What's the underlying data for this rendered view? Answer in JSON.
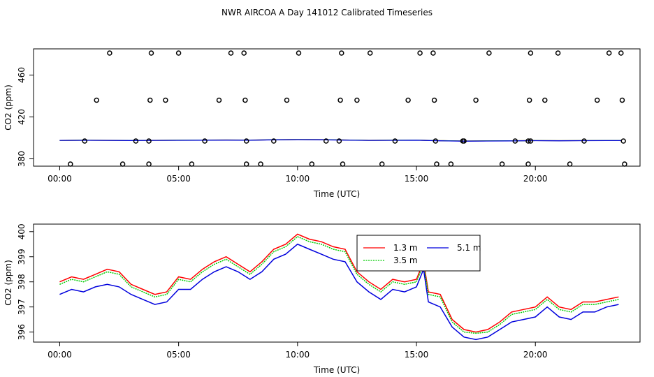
{
  "chart_data": [
    {
      "type": "scatter",
      "title": "NWR AIRCOA A  Day 141012  Calibrated Timeseries",
      "xlabel": "Time (UTC)",
      "ylabel": "CO2 (ppm)",
      "xlim": [
        -1.1,
        24.4
      ],
      "ylim": [
        373,
        485
      ],
      "xticks": [
        0,
        5,
        10,
        15,
        20
      ],
      "xtick_labels": [
        "00:00",
        "05:00",
        "10:00",
        "15:00",
        "20:00"
      ],
      "yticks": [
        380,
        420,
        460
      ],
      "ytick_labels": [
        "380",
        "420",
        "460"
      ],
      "points": [
        {
          "x": 0.45,
          "y": 375
        },
        {
          "x": 1.05,
          "y": 397
        },
        {
          "x": 1.55,
          "y": 436
        },
        {
          "x": 2.1,
          "y": 481
        },
        {
          "x": 2.65,
          "y": 375
        },
        {
          "x": 3.2,
          "y": 397
        },
        {
          "x": 3.75,
          "y": 397
        },
        {
          "x": 3.75,
          "y": 375
        },
        {
          "x": 3.8,
          "y": 436
        },
        {
          "x": 3.85,
          "y": 481
        },
        {
          "x": 4.45,
          "y": 436
        },
        {
          "x": 5.0,
          "y": 481
        },
        {
          "x": 5.55,
          "y": 375
        },
        {
          "x": 6.1,
          "y": 397
        },
        {
          "x": 6.7,
          "y": 436
        },
        {
          "x": 7.2,
          "y": 481
        },
        {
          "x": 7.75,
          "y": 481
        },
        {
          "x": 7.8,
          "y": 436
        },
        {
          "x": 7.85,
          "y": 397
        },
        {
          "x": 7.85,
          "y": 375
        },
        {
          "x": 8.45,
          "y": 375
        },
        {
          "x": 9.0,
          "y": 397
        },
        {
          "x": 9.55,
          "y": 436
        },
        {
          "x": 10.05,
          "y": 481
        },
        {
          "x": 10.6,
          "y": 375
        },
        {
          "x": 11.2,
          "y": 397
        },
        {
          "x": 11.75,
          "y": 397
        },
        {
          "x": 11.8,
          "y": 436
        },
        {
          "x": 11.85,
          "y": 481
        },
        {
          "x": 11.9,
          "y": 375
        },
        {
          "x": 12.5,
          "y": 436
        },
        {
          "x": 13.05,
          "y": 481
        },
        {
          "x": 13.55,
          "y": 375
        },
        {
          "x": 14.1,
          "y": 397
        },
        {
          "x": 14.65,
          "y": 436
        },
        {
          "x": 15.15,
          "y": 481
        },
        {
          "x": 15.7,
          "y": 481
        },
        {
          "x": 15.75,
          "y": 436
        },
        {
          "x": 15.8,
          "y": 397
        },
        {
          "x": 15.85,
          "y": 375
        },
        {
          "x": 16.45,
          "y": 375
        },
        {
          "x": 16.95,
          "y": 397
        },
        {
          "x": 17.0,
          "y": 397
        },
        {
          "x": 17.5,
          "y": 436
        },
        {
          "x": 18.05,
          "y": 481
        },
        {
          "x": 18.6,
          "y": 375
        },
        {
          "x": 19.15,
          "y": 397
        },
        {
          "x": 19.7,
          "y": 397
        },
        {
          "x": 19.7,
          "y": 375
        },
        {
          "x": 19.75,
          "y": 436
        },
        {
          "x": 19.8,
          "y": 481
        },
        {
          "x": 19.8,
          "y": 397
        },
        {
          "x": 20.4,
          "y": 436
        },
        {
          "x": 20.95,
          "y": 481
        },
        {
          "x": 21.45,
          "y": 375
        },
        {
          "x": 22.05,
          "y": 397
        },
        {
          "x": 22.6,
          "y": 436
        },
        {
          "x": 23.1,
          "y": 481
        },
        {
          "x": 23.6,
          "y": 481
        },
        {
          "x": 23.65,
          "y": 436
        },
        {
          "x": 23.7,
          "y": 397
        },
        {
          "x": 23.75,
          "y": 375
        }
      ],
      "series": [
        {
          "name": "1.3 m",
          "color": "#ff0000",
          "x": [
            0,
            1,
            2,
            3,
            4,
            5,
            6,
            7,
            8,
            9,
            10,
            11,
            12,
            13,
            14,
            15,
            16,
            17,
            18,
            19,
            20,
            21,
            22,
            23,
            23.6
          ],
          "values": [
            397.6,
            397.8,
            397.7,
            397.6,
            397.7,
            397.8,
            397.9,
            398.0,
            397.9,
            398.2,
            398.4,
            398.3,
            398.0,
            397.7,
            397.8,
            397.9,
            397.3,
            397.0,
            397.1,
            397.2,
            397.4,
            397.3,
            397.4,
            397.5,
            397.5
          ]
        },
        {
          "name": "3.5 m",
          "color": "#00cc00",
          "x": [
            0,
            1,
            2,
            3,
            4,
            5,
            6,
            7,
            8,
            9,
            10,
            11,
            12,
            13,
            14,
            15,
            16,
            17,
            18,
            19,
            20,
            21,
            22,
            23,
            23.6
          ],
          "values": [
            397.6,
            397.8,
            397.7,
            397.6,
            397.7,
            397.8,
            397.9,
            398.0,
            397.9,
            398.2,
            398.4,
            398.3,
            398.0,
            397.7,
            397.8,
            397.9,
            397.3,
            397.0,
            397.1,
            397.2,
            397.4,
            397.3,
            397.4,
            397.5,
            397.5
          ]
        },
        {
          "name": "5.1 m",
          "color": "#0000dd",
          "x": [
            0,
            1,
            2,
            3,
            4,
            5,
            6,
            7,
            8,
            9,
            10,
            11,
            12,
            13,
            14,
            15,
            16,
            17,
            18,
            19,
            20,
            21,
            22,
            23,
            23.6
          ],
          "values": [
            397.6,
            397.7,
            397.6,
            397.5,
            397.6,
            397.7,
            397.8,
            397.9,
            397.8,
            398.1,
            398.3,
            398.2,
            397.9,
            397.6,
            397.7,
            397.8,
            397.2,
            396.9,
            397.0,
            397.1,
            397.3,
            397.2,
            397.3,
            397.4,
            397.4
          ]
        }
      ]
    },
    {
      "type": "line",
      "xlabel": "Time (UTC)",
      "ylabel": "CO2 (ppm)",
      "xlim": [
        -1.1,
        24.4
      ],
      "ylim": [
        395.6,
        400.3
      ],
      "xticks": [
        0,
        5,
        10,
        15,
        20
      ],
      "xtick_labels": [
        "00:00",
        "05:00",
        "10:00",
        "15:00",
        "20:00"
      ],
      "yticks": [
        396,
        397,
        398,
        399,
        400
      ],
      "ytick_labels": [
        "396",
        "397",
        "398",
        "399",
        "400"
      ],
      "legend_position": "top-right",
      "x": [
        0.0,
        0.5,
        1.0,
        1.5,
        2.0,
        2.5,
        3.0,
        3.5,
        4.0,
        4.5,
        5.0,
        5.5,
        6.0,
        6.5,
        7.0,
        7.5,
        8.0,
        8.5,
        9.0,
        9.5,
        10.0,
        10.5,
        11.0,
        11.5,
        12.0,
        12.5,
        13.0,
        13.5,
        14.0,
        14.5,
        15.0,
        15.3,
        15.5,
        16.0,
        16.5,
        17.0,
        17.5,
        18.0,
        18.5,
        19.0,
        19.5,
        20.0,
        20.5,
        21.0,
        21.5,
        22.0,
        22.5,
        23.0,
        23.5
      ],
      "series": [
        {
          "name": "1.3 m",
          "color": "#ff0000",
          "values": [
            398.0,
            398.2,
            398.1,
            398.3,
            398.5,
            398.4,
            397.9,
            397.7,
            397.5,
            397.6,
            398.2,
            398.1,
            398.5,
            398.8,
            399.0,
            398.7,
            398.4,
            398.8,
            399.3,
            399.5,
            399.9,
            399.7,
            399.6,
            399.4,
            399.3,
            398.4,
            398.0,
            397.7,
            398.1,
            398.0,
            398.1,
            398.8,
            397.6,
            397.5,
            396.5,
            396.1,
            396.0,
            396.1,
            396.4,
            396.8,
            396.9,
            397.0,
            397.4,
            397.0,
            396.9,
            397.2,
            397.2,
            397.3,
            397.4
          ]
        },
        {
          "name": "3.5 m",
          "color": "#00cc00",
          "values": [
            397.9,
            398.1,
            398.0,
            398.2,
            398.4,
            398.3,
            397.8,
            397.6,
            397.4,
            397.5,
            398.1,
            398.0,
            398.4,
            398.7,
            398.9,
            398.6,
            398.3,
            398.7,
            399.2,
            399.4,
            399.8,
            399.6,
            399.5,
            399.3,
            399.2,
            398.3,
            397.9,
            397.6,
            398.0,
            397.9,
            398.0,
            398.7,
            397.5,
            397.4,
            396.4,
            396.0,
            395.95,
            396.0,
            396.3,
            396.7,
            396.8,
            396.9,
            397.3,
            396.9,
            396.8,
            397.1,
            397.1,
            397.2,
            397.3
          ]
        },
        {
          "name": "5.1 m",
          "color": "#0000dd",
          "values": [
            397.5,
            397.7,
            397.6,
            397.8,
            397.9,
            397.8,
            397.5,
            397.3,
            397.1,
            397.2,
            397.7,
            397.7,
            398.1,
            398.4,
            398.6,
            398.4,
            398.1,
            398.4,
            398.9,
            399.1,
            399.5,
            399.3,
            399.1,
            398.9,
            398.8,
            398.0,
            397.6,
            397.3,
            397.7,
            397.6,
            397.8,
            398.5,
            397.2,
            397.0,
            396.2,
            395.8,
            395.7,
            395.8,
            396.1,
            396.4,
            396.5,
            396.6,
            397.0,
            396.6,
            396.5,
            396.8,
            396.8,
            397.0,
            397.1
          ]
        }
      ]
    }
  ]
}
